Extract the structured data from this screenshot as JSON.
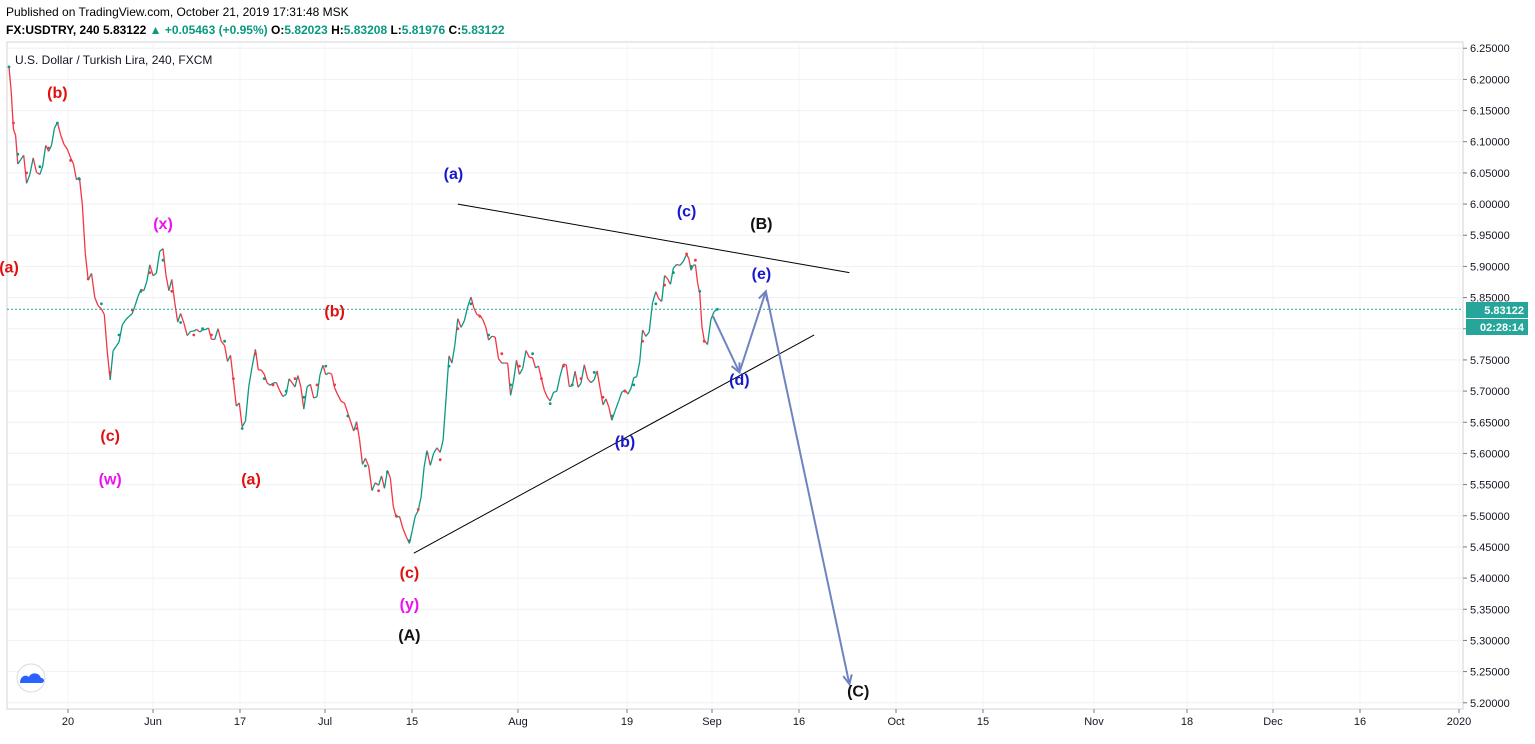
{
  "header": {
    "published": "Published on TradingView.com, October 21, 2019 17:31:48 MSK",
    "symbol": "FX:USDTRY, 240",
    "last": "5.83122",
    "change": "▲ +0.05463 (+0.95%)",
    "open_label": "O:",
    "open": "5.82023",
    "high_label": "H:",
    "high": "5.83208",
    "low_label": "L:",
    "low": "5.81976",
    "close_label": "C:",
    "close": "5.83122"
  },
  "chart_data": {
    "type": "line",
    "title": "U.S. Dollar / Turkish Lira, 240, FXCM",
    "price_axis": [
      "6.25000",
      "6.20000",
      "6.15000",
      "6.10000",
      "6.05000",
      "6.00000",
      "5.95000",
      "5.90000",
      "5.85000",
      "5.80000",
      "5.75000",
      "5.70000",
      "5.65000",
      "5.60000",
      "5.55000",
      "5.50000",
      "5.45000",
      "5.40000",
      "5.35000",
      "5.30000",
      "5.25000",
      "5.20000"
    ],
    "ylim": [
      5.19,
      6.26
    ],
    "time_axis": [
      "20",
      "Jun",
      "17",
      "Jul",
      "15",
      "Aug",
      "19",
      "Sep",
      "16",
      "Oct",
      "15",
      "Nov",
      "18",
      "Dec",
      "16",
      "2020"
    ],
    "last_price_label": "5.83122",
    "countdown_label": "02:28:14",
    "series": [
      {
        "x": [
          "May 13",
          "May 14",
          "May 15",
          "May 17",
          "May 20",
          "May 22",
          "May 24",
          "May 27",
          "May 29",
          "May 31",
          "Jun 3",
          "Jun 5",
          "Jun 7",
          "Jun 10",
          "Jun 12",
          "Jun 14",
          "Jun 17",
          "Jun 19",
          "Jun 21",
          "Jun 24",
          "Jun 26",
          "Jun 28",
          "Jul 1",
          "Jul 3",
          "Jul 5",
          "Jul 8",
          "Jul 10",
          "Jul 12",
          "Jul 15",
          "Jul 17",
          "Jul 19",
          "Jul 22",
          "Jul 24",
          "Jul 26",
          "Jul 29",
          "Jul 31",
          "Aug 2",
          "Aug 5",
          "Aug 7",
          "Aug 9",
          "Aug 12",
          "Aug 14",
          "Aug 16",
          "Aug 19",
          "Aug 21",
          "Aug 23",
          "Aug 26",
          "Aug 28",
          "Aug 30",
          "Sep 2",
          "Sep 4",
          "Sep 6",
          "Sep 9",
          "Sep 11",
          "Sep 13",
          "Sep 16",
          "Sep 18",
          "Sep 20",
          "Sep 23",
          "Sep 25",
          "Sep 27",
          "Sep 30",
          "Oct 2",
          "Oct 4",
          "Oct 7",
          "Oct 9",
          "Oct 11",
          "Oct 14",
          "Oct 15",
          "Oct 16",
          "Oct 17",
          "Oct 18",
          "Oct 21"
        ],
        "values": [
          6.22,
          6.13,
          6.08,
          6.05,
          6.06,
          6.09,
          6.13,
          6.07,
          6.04,
          5.88,
          5.84,
          5.73,
          5.79,
          5.83,
          5.86,
          5.89,
          5.91,
          5.86,
          5.81,
          5.79,
          5.8,
          5.79,
          5.78,
          5.72,
          5.64,
          5.76,
          5.72,
          5.71,
          5.7,
          5.72,
          5.69,
          5.71,
          5.74,
          5.71,
          5.66,
          5.64,
          5.58,
          5.54,
          5.57,
          5.5,
          5.46,
          5.51,
          5.6,
          5.59,
          5.74,
          5.8,
          5.84,
          5.82,
          5.79,
          5.76,
          5.71,
          5.74,
          5.76,
          5.72,
          5.68,
          5.74,
          5.71,
          5.72,
          5.73,
          5.69,
          5.66,
          5.7,
          5.71,
          5.78,
          5.84,
          5.87,
          5.89,
          5.92,
          5.9,
          5.91,
          5.86,
          5.78,
          5.83122
        ]
      }
    ],
    "trendlines": [
      {
        "name": "triangle-upper",
        "from": {
          "t": "Aug 23",
          "price": 6.0
        },
        "to": {
          "t": "Nov 20",
          "price": 5.89
        }
      },
      {
        "name": "triangle-lower",
        "from": {
          "t": "Aug 13",
          "price": 5.44
        },
        "to": {
          "t": "Nov 12",
          "price": 5.79
        }
      }
    ],
    "projection": [
      {
        "t": "Oct 20",
        "price": 5.82
      },
      {
        "t": "Oct 26",
        "price": 5.73
      },
      {
        "t": "Nov 1",
        "price": 5.86
      },
      {
        "t": "Nov 20",
        "price": 5.23
      }
    ],
    "annotations": [
      {
        "text": "(b)",
        "color": "#e01010",
        "t": "May 24",
        "price": 6.17
      },
      {
        "text": "(a)",
        "color": "#e01010",
        "t": "May 13",
        "price": 5.89
      },
      {
        "text": "(c)",
        "color": "#e01010",
        "t": "Jun 5",
        "price": 5.62
      },
      {
        "text": "(w)",
        "color": "#ee10ee",
        "t": "Jun 5",
        "price": 5.55
      },
      {
        "text": "(x)",
        "color": "#ee10ee",
        "t": "Jun 17",
        "price": 5.96
      },
      {
        "text": "(a)",
        "color": "#e01010",
        "t": "Jul 7",
        "price": 5.55
      },
      {
        "text": "(b)",
        "color": "#e01010",
        "t": "Jul 26",
        "price": 5.82
      },
      {
        "text": "(c)",
        "color": "#e01010",
        "t": "Aug 12",
        "price": 5.4
      },
      {
        "text": "(y)",
        "color": "#ee10ee",
        "t": "Aug 12",
        "price": 5.35
      },
      {
        "text": "(A)",
        "color": "#111111",
        "t": "Aug 12",
        "price": 5.3
      },
      {
        "text": "(a)",
        "color": "#1818d0",
        "t": "Aug 22",
        "price": 6.04
      },
      {
        "text": "(b)",
        "color": "#1818d0",
        "t": "Sep 30",
        "price": 5.61
      },
      {
        "text": "(c)",
        "color": "#1818d0",
        "t": "Oct 14",
        "price": 5.98
      },
      {
        "text": "(d)",
        "color": "#1818d0",
        "t": "Oct 26",
        "price": 5.71
      },
      {
        "text": "(e)",
        "color": "#1818d0",
        "t": "Oct 31",
        "price": 5.88
      },
      {
        "text": "(B)",
        "color": "#111111",
        "t": "Oct 31",
        "price": 5.96
      },
      {
        "text": "(C)",
        "color": "#111111",
        "t": "Nov 22",
        "price": 5.21
      }
    ],
    "colors": {
      "up": "#089981",
      "down": "#f23645",
      "trendline": "#000000",
      "projection": "#6f83c0",
      "price_line": "#26a69a",
      "price_tag": "#26a69a"
    }
  },
  "logo": {
    "icon": "tradingview-cloud-icon"
  }
}
